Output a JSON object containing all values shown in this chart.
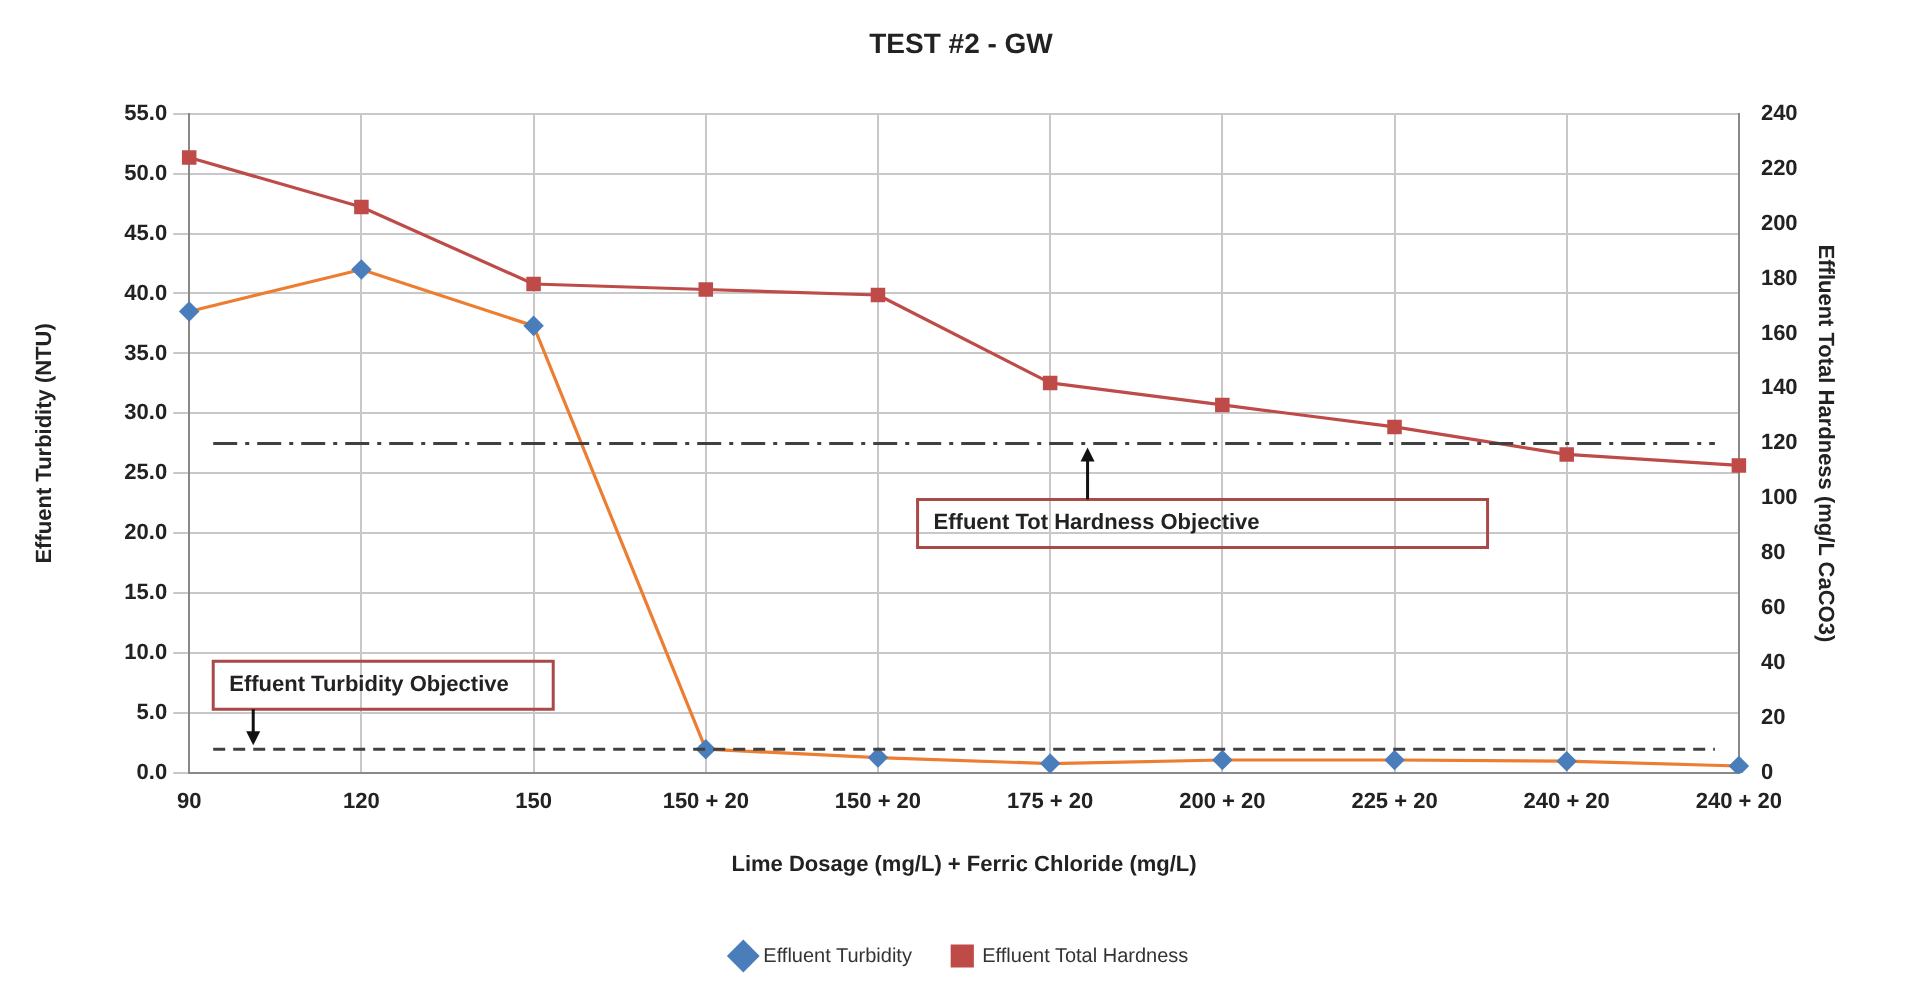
{
  "chart_data": {
    "type": "line",
    "title": "TEST #2 - GW",
    "xlabel": "Lime Dosage (mg/L) + Ferric Chloride (mg/L)",
    "ylabel": "Effuent Turbidity (NTU)",
    "y2label": "Effluent Total Hardness (mg/L CaCO3)",
    "categories": [
      "90",
      "120",
      "150",
      "150 + 20",
      "150 + 20",
      "175 + 20",
      "200 + 20",
      "225 + 20",
      "240 + 20",
      "240 + 20"
    ],
    "series": [
      {
        "name": "Effluent Turbidity",
        "color": "#ed7d31",
        "colors": [
          "#4a7ebb",
          "#4a7ebb",
          "#4a7ebb",
          "#4a7ebb",
          "#4a7ebb",
          "#4a7ebb",
          "#4a7ebb",
          "#4a7ebb",
          "#4a7ebb",
          "#4a7ebb"
        ],
        "marker": "diamond",
        "values": [
          38.5,
          42.0,
          37.3,
          2.0,
          1.3,
          0.8,
          1.1,
          1.1,
          1.0,
          0.6
        ]
      },
      {
        "name": "Effluent Total Hardness",
        "color": "#be4b48",
        "marker": "square",
        "axis": "y2",
        "values": [
          224,
          206,
          178,
          176,
          174,
          142,
          134,
          126,
          116,
          112
        ]
      }
    ],
    "ylim": [
      0,
      55
    ],
    "yticks": [
      {
        "value": 0,
        "label": "0.0"
      },
      {
        "value": 5,
        "label": "5.0"
      },
      {
        "value": 10,
        "label": "10.0"
      },
      {
        "value": 15,
        "label": "15.0"
      },
      {
        "value": 20,
        "label": "20.0"
      },
      {
        "value": 25,
        "label": "25.0"
      },
      {
        "value": 30,
        "label": "30.0"
      },
      {
        "value": 35,
        "label": "35.0"
      },
      {
        "value": 40,
        "label": "40.0"
      },
      {
        "value": 45,
        "label": "45.0"
      },
      {
        "value": 50,
        "label": "50.0"
      },
      {
        "value": 55,
        "label": "55.0"
      }
    ],
    "y2lim": [
      0,
      240
    ],
    "y2ticks": [
      0,
      20,
      40,
      60,
      80,
      100,
      120,
      140,
      160,
      180,
      200,
      220,
      240
    ],
    "ref_lines": [
      {
        "axis": "y",
        "value": 2.0,
        "label": "Effuent Turbidity Objective",
        "color": "#404040",
        "line_style": "dashed"
      },
      {
        "axis": "y2",
        "value": 120,
        "label": "Effuent Tot Hardness Objective",
        "color": "#404040",
        "line_style": "dashdot"
      }
    ],
    "grid": true,
    "legend": "bottom"
  }
}
